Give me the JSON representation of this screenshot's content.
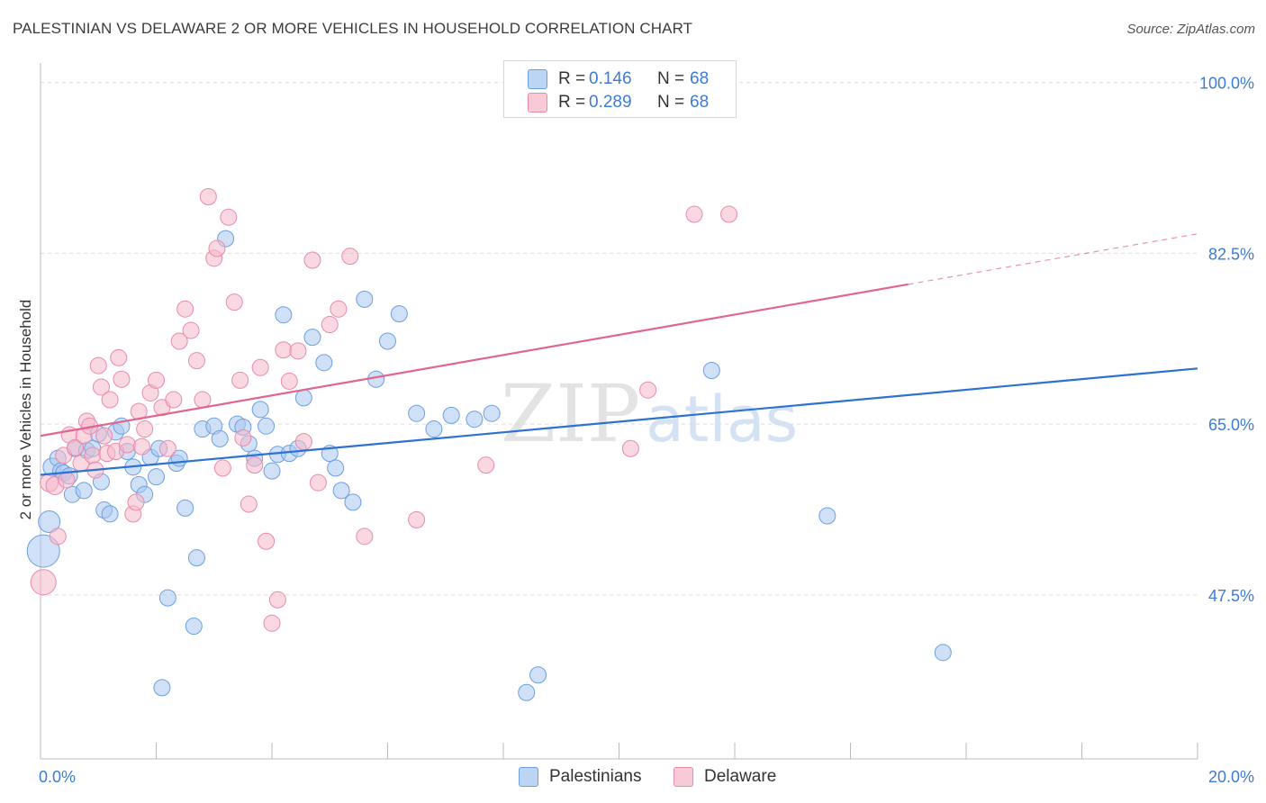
{
  "title": "PALESTINIAN VS DELAWARE 2 OR MORE VEHICLES IN HOUSEHOLD CORRELATION CHART",
  "source": "Source: ZipAtlas.com",
  "watermark": {
    "zip": "ZIP",
    "atlas": "atlas"
  },
  "legend_top": {
    "rows": [
      {
        "r_label": "R =",
        "r_value": "0.146",
        "n_label": "N =",
        "n_value": "68"
      },
      {
        "r_label": "R =",
        "r_value": "0.289",
        "n_label": "N =",
        "n_value": "68"
      }
    ]
  },
  "legend_bottom": {
    "series1": "Palestinians",
    "series2": "Delaware"
  },
  "colors": {
    "blue_fill": "#a9c8f0",
    "blue_stroke": "#6b9fe0",
    "blue_line": "#2d72d2",
    "pink_fill": "#f6b8ca",
    "pink_stroke": "#e98aa8",
    "pink_line": "#e0658f",
    "tick_label": "#3d7bd4",
    "grid": "#dddddd"
  },
  "chart_data": {
    "type": "scatter",
    "title": "PALESTINIAN VS DELAWARE 2 OR MORE VEHICLES IN HOUSEHOLD CORRELATION CHART",
    "xlabel": "",
    "ylabel": "2 or more Vehicles in Household",
    "xlim": [
      0,
      20
    ],
    "ylim": [
      30.7,
      102
    ],
    "x_tick_labels": [
      "0.0%",
      "20.0%"
    ],
    "y_ticks": [
      47.5,
      65.0,
      82.5,
      100.0
    ],
    "y_tick_labels": [
      "47.5%",
      "65.0%",
      "82.5%",
      "100.0%"
    ],
    "x_minor_ticks": [
      0,
      2,
      4,
      6,
      8,
      10,
      12,
      14,
      16,
      18,
      20
    ],
    "grid": true,
    "series": [
      {
        "name": "Palestinians",
        "r": 0.146,
        "n": 68,
        "trend": {
          "x": [
            0,
            20
          ],
          "y": [
            59.8,
            70.7
          ],
          "dashed_from": null
        },
        "points": [
          {
            "x": 0.05,
            "y": 52.0,
            "s": 18
          },
          {
            "x": 0.15,
            "y": 55.0,
            "s": 12
          },
          {
            "x": 0.2,
            "y": 60.6,
            "s": 10
          },
          {
            "x": 0.3,
            "y": 61.5,
            "s": 9
          },
          {
            "x": 0.35,
            "y": 60.2,
            "s": 9
          },
          {
            "x": 0.4,
            "y": 60.0,
            "s": 9
          },
          {
            "x": 0.5,
            "y": 59.7,
            "s": 9
          },
          {
            "x": 0.55,
            "y": 57.8,
            "s": 9
          },
          {
            "x": 0.6,
            "y": 62.5,
            "s": 9
          },
          {
            "x": 0.75,
            "y": 58.2,
            "s": 9
          },
          {
            "x": 0.8,
            "y": 62.3,
            "s": 9
          },
          {
            "x": 0.9,
            "y": 62.5,
            "s": 9
          },
          {
            "x": 1.0,
            "y": 64.0,
            "s": 9
          },
          {
            "x": 1.05,
            "y": 59.1,
            "s": 9
          },
          {
            "x": 1.1,
            "y": 56.2,
            "s": 9
          },
          {
            "x": 1.2,
            "y": 55.8,
            "s": 9
          },
          {
            "x": 1.3,
            "y": 64.2,
            "s": 9
          },
          {
            "x": 1.4,
            "y": 64.8,
            "s": 9
          },
          {
            "x": 1.5,
            "y": 62.2,
            "s": 9
          },
          {
            "x": 1.6,
            "y": 60.6,
            "s": 9
          },
          {
            "x": 1.7,
            "y": 58.8,
            "s": 9
          },
          {
            "x": 1.8,
            "y": 57.8,
            "s": 9
          },
          {
            "x": 1.9,
            "y": 61.6,
            "s": 9
          },
          {
            "x": 2.0,
            "y": 59.6,
            "s": 9
          },
          {
            "x": 2.05,
            "y": 62.5,
            "s": 9
          },
          {
            "x": 2.1,
            "y": 38.0,
            "s": 9
          },
          {
            "x": 2.2,
            "y": 47.2,
            "s": 9
          },
          {
            "x": 2.35,
            "y": 61.0,
            "s": 9
          },
          {
            "x": 2.4,
            "y": 61.5,
            "s": 9
          },
          {
            "x": 2.5,
            "y": 56.4,
            "s": 9
          },
          {
            "x": 2.65,
            "y": 44.3,
            "s": 9
          },
          {
            "x": 2.7,
            "y": 51.3,
            "s": 9
          },
          {
            "x": 2.8,
            "y": 64.5,
            "s": 9
          },
          {
            "x": 3.0,
            "y": 64.8,
            "s": 9
          },
          {
            "x": 3.1,
            "y": 63.5,
            "s": 9
          },
          {
            "x": 3.2,
            "y": 84.0,
            "s": 9
          },
          {
            "x": 3.4,
            "y": 65.0,
            "s": 9
          },
          {
            "x": 3.5,
            "y": 64.7,
            "s": 9
          },
          {
            "x": 3.6,
            "y": 63.0,
            "s": 9
          },
          {
            "x": 3.7,
            "y": 61.5,
            "s": 9
          },
          {
            "x": 3.8,
            "y": 66.5,
            "s": 9
          },
          {
            "x": 3.9,
            "y": 64.8,
            "s": 9
          },
          {
            "x": 4.0,
            "y": 60.2,
            "s": 9
          },
          {
            "x": 4.1,
            "y": 61.9,
            "s": 9
          },
          {
            "x": 4.2,
            "y": 76.2,
            "s": 9
          },
          {
            "x": 4.3,
            "y": 62.0,
            "s": 9
          },
          {
            "x": 4.45,
            "y": 62.5,
            "s": 9
          },
          {
            "x": 4.55,
            "y": 67.7,
            "s": 9
          },
          {
            "x": 4.7,
            "y": 73.9,
            "s": 9
          },
          {
            "x": 4.9,
            "y": 71.3,
            "s": 9
          },
          {
            "x": 5.0,
            "y": 62.0,
            "s": 9
          },
          {
            "x": 5.1,
            "y": 60.5,
            "s": 9
          },
          {
            "x": 5.2,
            "y": 58.2,
            "s": 9
          },
          {
            "x": 5.4,
            "y": 57.0,
            "s": 9
          },
          {
            "x": 5.6,
            "y": 77.8,
            "s": 9
          },
          {
            "x": 5.8,
            "y": 69.6,
            "s": 9
          },
          {
            "x": 6.0,
            "y": 73.5,
            "s": 9
          },
          {
            "x": 6.2,
            "y": 76.3,
            "s": 9
          },
          {
            "x": 6.5,
            "y": 66.1,
            "s": 9
          },
          {
            "x": 6.8,
            "y": 64.5,
            "s": 9
          },
          {
            "x": 7.1,
            "y": 65.9,
            "s": 9
          },
          {
            "x": 7.5,
            "y": 65.5,
            "s": 9
          },
          {
            "x": 7.8,
            "y": 66.1,
            "s": 9
          },
          {
            "x": 8.4,
            "y": 37.5,
            "s": 9
          },
          {
            "x": 8.6,
            "y": 39.3,
            "s": 9
          },
          {
            "x": 11.6,
            "y": 70.5,
            "s": 9
          },
          {
            "x": 13.6,
            "y": 55.6,
            "s": 9
          },
          {
            "x": 15.6,
            "y": 41.6,
            "s": 9
          }
        ]
      },
      {
        "name": "Delaware",
        "r": 0.289,
        "n": 68,
        "trend": {
          "x": [
            0,
            20
          ],
          "y": [
            63.8,
            84.5
          ],
          "dashed_from": 15.0
        },
        "points": [
          {
            "x": 0.05,
            "y": 48.8,
            "s": 14
          },
          {
            "x": 0.15,
            "y": 59.0,
            "s": 10
          },
          {
            "x": 0.25,
            "y": 58.7,
            "s": 10
          },
          {
            "x": 0.3,
            "y": 53.5,
            "s": 9
          },
          {
            "x": 0.4,
            "y": 61.8,
            "s": 9
          },
          {
            "x": 0.45,
            "y": 59.3,
            "s": 9
          },
          {
            "x": 0.5,
            "y": 63.9,
            "s": 9
          },
          {
            "x": 0.6,
            "y": 62.6,
            "s": 9
          },
          {
            "x": 0.7,
            "y": 61.0,
            "s": 9
          },
          {
            "x": 0.75,
            "y": 63.8,
            "s": 9
          },
          {
            "x": 0.8,
            "y": 65.3,
            "s": 9
          },
          {
            "x": 0.85,
            "y": 64.8,
            "s": 9
          },
          {
            "x": 0.9,
            "y": 61.8,
            "s": 9
          },
          {
            "x": 0.95,
            "y": 60.3,
            "s": 9
          },
          {
            "x": 1.0,
            "y": 71.0,
            "s": 9
          },
          {
            "x": 1.05,
            "y": 68.8,
            "s": 9
          },
          {
            "x": 1.1,
            "y": 63.8,
            "s": 9
          },
          {
            "x": 1.15,
            "y": 62.0,
            "s": 9
          },
          {
            "x": 1.2,
            "y": 67.5,
            "s": 9
          },
          {
            "x": 1.3,
            "y": 62.2,
            "s": 9
          },
          {
            "x": 1.35,
            "y": 71.8,
            "s": 9
          },
          {
            "x": 1.4,
            "y": 69.6,
            "s": 9
          },
          {
            "x": 1.5,
            "y": 62.9,
            "s": 9
          },
          {
            "x": 1.6,
            "y": 55.8,
            "s": 9
          },
          {
            "x": 1.65,
            "y": 57.0,
            "s": 9
          },
          {
            "x": 1.7,
            "y": 66.3,
            "s": 9
          },
          {
            "x": 1.75,
            "y": 62.7,
            "s": 9
          },
          {
            "x": 1.8,
            "y": 64.5,
            "s": 9
          },
          {
            "x": 1.9,
            "y": 68.2,
            "s": 9
          },
          {
            "x": 2.0,
            "y": 69.5,
            "s": 9
          },
          {
            "x": 2.1,
            "y": 66.7,
            "s": 9
          },
          {
            "x": 2.2,
            "y": 62.5,
            "s": 9
          },
          {
            "x": 2.3,
            "y": 67.5,
            "s": 9
          },
          {
            "x": 2.4,
            "y": 73.5,
            "s": 9
          },
          {
            "x": 2.5,
            "y": 76.8,
            "s": 9
          },
          {
            "x": 2.6,
            "y": 74.6,
            "s": 9
          },
          {
            "x": 2.7,
            "y": 71.5,
            "s": 9
          },
          {
            "x": 2.8,
            "y": 67.5,
            "s": 9
          },
          {
            "x": 2.9,
            "y": 88.3,
            "s": 9
          },
          {
            "x": 3.0,
            "y": 82.0,
            "s": 9
          },
          {
            "x": 3.05,
            "y": 83.0,
            "s": 9
          },
          {
            "x": 3.15,
            "y": 60.5,
            "s": 9
          },
          {
            "x": 3.25,
            "y": 86.2,
            "s": 9
          },
          {
            "x": 3.35,
            "y": 77.5,
            "s": 9
          },
          {
            "x": 3.45,
            "y": 69.5,
            "s": 9
          },
          {
            "x": 3.5,
            "y": 63.6,
            "s": 9
          },
          {
            "x": 3.6,
            "y": 56.8,
            "s": 9
          },
          {
            "x": 3.7,
            "y": 60.8,
            "s": 9
          },
          {
            "x": 3.8,
            "y": 70.8,
            "s": 9
          },
          {
            "x": 3.9,
            "y": 53.0,
            "s": 9
          },
          {
            "x": 4.0,
            "y": 44.6,
            "s": 9
          },
          {
            "x": 4.1,
            "y": 47.0,
            "s": 9
          },
          {
            "x": 4.2,
            "y": 72.6,
            "s": 9
          },
          {
            "x": 4.3,
            "y": 69.4,
            "s": 9
          },
          {
            "x": 4.45,
            "y": 72.5,
            "s": 9
          },
          {
            "x": 4.55,
            "y": 63.2,
            "s": 9
          },
          {
            "x": 4.7,
            "y": 81.8,
            "s": 9
          },
          {
            "x": 4.8,
            "y": 59.0,
            "s": 9
          },
          {
            "x": 5.0,
            "y": 75.2,
            "s": 9
          },
          {
            "x": 5.15,
            "y": 76.8,
            "s": 9
          },
          {
            "x": 5.35,
            "y": 82.2,
            "s": 9
          },
          {
            "x": 5.6,
            "y": 53.5,
            "s": 9
          },
          {
            "x": 6.5,
            "y": 55.2,
            "s": 9
          },
          {
            "x": 7.7,
            "y": 60.8,
            "s": 9
          },
          {
            "x": 10.2,
            "y": 62.5,
            "s": 9
          },
          {
            "x": 10.5,
            "y": 68.5,
            "s": 9
          },
          {
            "x": 11.3,
            "y": 86.5,
            "s": 9
          },
          {
            "x": 11.9,
            "y": 86.5,
            "s": 9
          }
        ]
      }
    ]
  }
}
